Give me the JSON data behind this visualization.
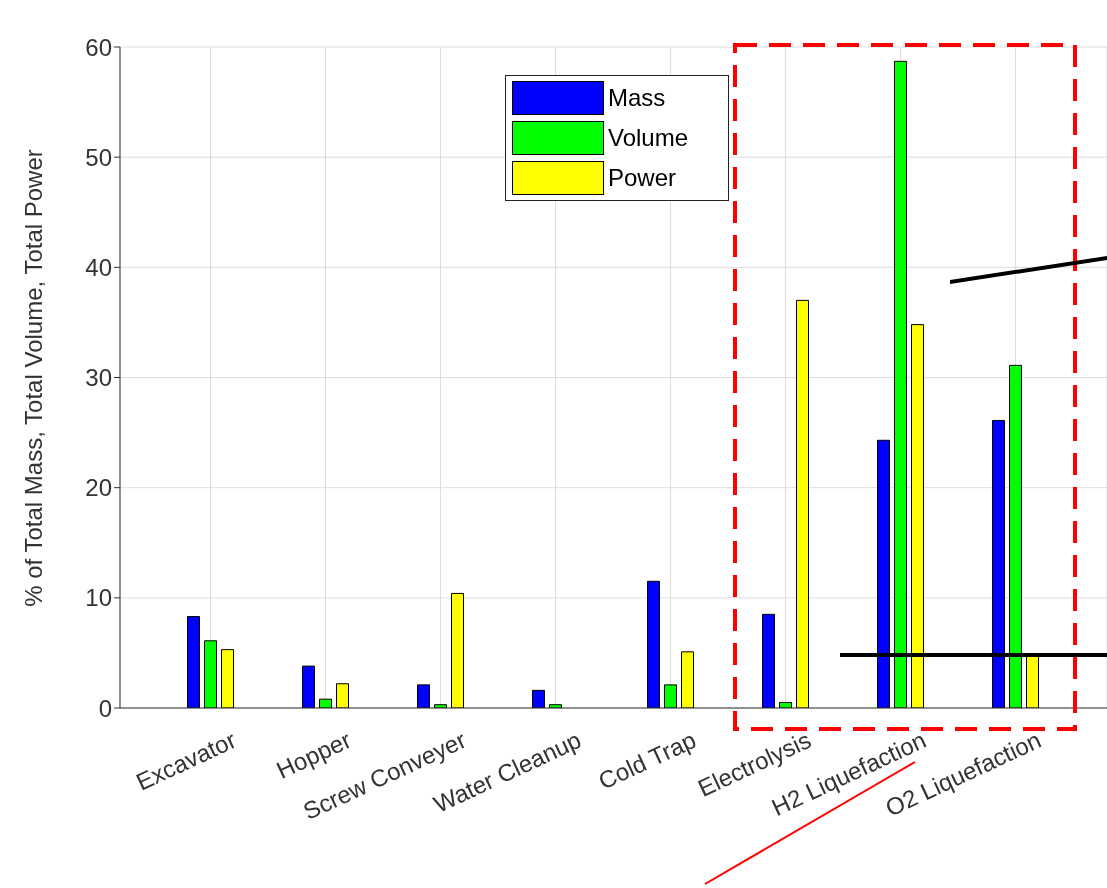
{
  "chart_data": {
    "type": "bar",
    "ylabel": "% of Total Mass, Total Volume, Total Power",
    "categories": [
      "Excavator",
      "Hopper",
      "Screw Conveyer",
      "Water Cleanup",
      "Cold Trap",
      "Electrolysis",
      "H2 Liquefaction",
      "O2 Liquefaction"
    ],
    "series": [
      {
        "name": "Mass",
        "color": "#0000ff",
        "values": [
          8.3,
          3.8,
          2.1,
          1.6,
          11.5,
          8.5,
          24.3,
          26.1
        ]
      },
      {
        "name": "Volume",
        "color": "#00ff00",
        "values": [
          6.1,
          0.8,
          0.3,
          0.3,
          2.1,
          0.5,
          58.7,
          31.1
        ]
      },
      {
        "name": "Power",
        "color": "#ffff00",
        "values": [
          5.3,
          2.2,
          10.4,
          0,
          5.1,
          37,
          34.8,
          4.9
        ]
      }
    ],
    "ylim": [
      0,
      60
    ],
    "yticks": [
      0,
      10,
      20,
      30,
      40,
      50,
      60
    ],
    "grid": true,
    "legend": "top"
  }
}
